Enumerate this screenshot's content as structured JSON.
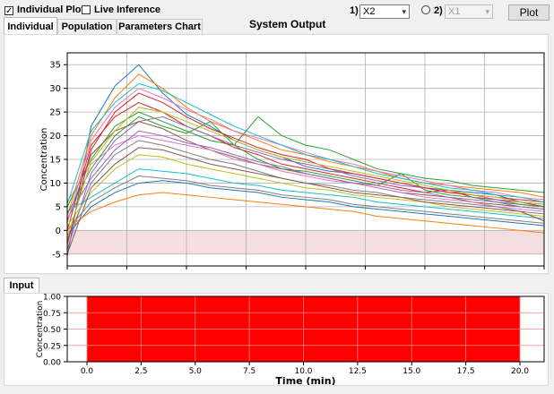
{
  "toolbar": {
    "individual_plot_label": "Individual Plot",
    "individual_plot_checked": true,
    "live_inference_label": "Live Inference",
    "live_inference_checked": false,
    "selector1_label": "1)",
    "selector1_value": "X2",
    "selector2_label": "2)",
    "selector2_value": "X1",
    "plot_button_label": "Plot"
  },
  "tabs": [
    {
      "label": "Individual",
      "active": true
    },
    {
      "label": "Population",
      "active": false
    },
    {
      "label": "Parameters Chart",
      "active": false
    }
  ],
  "output_title": "System Output",
  "input_tab_label": "Input",
  "colors": {
    "band_fill": "#f4dede",
    "input_fill": "#ff0000",
    "palette": [
      "#1f77b4",
      "#ff7f0e",
      "#2ca02c",
      "#d62728",
      "#9467bd",
      "#8c564b",
      "#e377c2",
      "#7f7f7f",
      "#bcbd22",
      "#17becf"
    ]
  },
  "chart_data": [
    {
      "type": "line",
      "title": "",
      "xlabel": "",
      "ylabel": "Concentration",
      "x_range": [
        0,
        20
      ],
      "ylim": [
        -7.5,
        37.5
      ],
      "y_ticks": [
        -5,
        0,
        5,
        10,
        15,
        20,
        25,
        30,
        35
      ],
      "x_ticks": [
        0,
        2.5,
        5,
        7.5,
        10,
        12.5,
        15,
        17.5,
        20
      ],
      "grid": true,
      "shaded_band": [
        -5,
        0
      ],
      "x": [
        0,
        1,
        2,
        3,
        4,
        5,
        6,
        7,
        8,
        9,
        10,
        11,
        12,
        13,
        14,
        15,
        16,
        17,
        18,
        19,
        20
      ],
      "series": [
        {
          "values": [
            -5.5,
            22.0,
            30.5,
            35.0,
            29.0,
            24.5,
            22.0,
            19.0,
            17.0,
            15.5,
            13.5,
            12.5,
            12.0,
            11.0,
            10.0,
            9.0,
            8.5,
            8.0,
            7.5,
            6.0,
            5.5
          ]
        },
        {
          "values": [
            3.0,
            20.0,
            28.0,
            33.0,
            30.0,
            26.0,
            23.0,
            21.0,
            19.0,
            17.0,
            16.0,
            14.5,
            13.5,
            12.5,
            11.0,
            10.0,
            9.5,
            9.0,
            8.5,
            8.0,
            7.0
          ]
        },
        {
          "values": [
            5.0,
            15.0,
            22.0,
            25.0,
            23.0,
            21.0,
            19.0,
            18.0,
            24.0,
            20.0,
            18.0,
            17.0,
            15.0,
            13.0,
            12.0,
            11.0,
            10.5,
            9.5,
            9.0,
            8.5,
            8.0
          ]
        },
        {
          "values": [
            0.0,
            18.0,
            24.0,
            27.0,
            25.0,
            22.0,
            20.0,
            17.5,
            16.0,
            14.0,
            13.0,
            12.0,
            11.0,
            10.0,
            9.0,
            8.0,
            8.5,
            7.0,
            6.5,
            6.0,
            5.0
          ]
        },
        {
          "values": [
            -4.0,
            12.0,
            19.0,
            23.0,
            24.0,
            22.0,
            20.0,
            18.0,
            16.5,
            15.0,
            14.0,
            13.0,
            11.5,
            10.5,
            9.5,
            9.0,
            8.0,
            7.5,
            6.5,
            5.5,
            5.0
          ]
        },
        {
          "values": [
            2.0,
            16.0,
            21.0,
            23.0,
            21.5,
            19.0,
            17.0,
            15.5,
            14.0,
            13.0,
            12.0,
            11.0,
            10.0,
            9.0,
            8.0,
            7.5,
            7.0,
            6.0,
            5.5,
            5.0,
            4.5
          ]
        },
        {
          "values": [
            6.0,
            14.0,
            18.0,
            20.0,
            19.0,
            18.0,
            17.0,
            15.0,
            14.0,
            12.5,
            11.5,
            10.5,
            10.0,
            9.0,
            8.0,
            7.0,
            6.5,
            6.0,
            5.0,
            4.5,
            4.0
          ]
        },
        {
          "values": [
            -2.0,
            10.0,
            16.0,
            19.0,
            18.0,
            16.5,
            15.0,
            14.0,
            12.5,
            11.0,
            10.0,
            9.5,
            8.5,
            8.0,
            7.0,
            6.5,
            6.0,
            5.5,
            5.0,
            4.0,
            3.5
          ]
        },
        {
          "values": [
            1.0,
            8.0,
            13.0,
            16.0,
            15.5,
            14.0,
            13.0,
            12.0,
            11.0,
            10.0,
            9.0,
            8.5,
            7.5,
            7.0,
            6.5,
            6.0,
            5.0,
            4.5,
            4.0,
            3.5,
            3.0
          ]
        },
        {
          "values": [
            4.0,
            7.0,
            10.0,
            13.0,
            12.5,
            12.0,
            11.0,
            10.0,
            9.5,
            8.5,
            8.0,
            7.5,
            7.0,
            6.0,
            5.5,
            5.0,
            4.5,
            4.0,
            3.5,
            3.0,
            2.5
          ]
        },
        {
          "values": [
            -1.0,
            5.0,
            8.0,
            10.0,
            10.5,
            10.0,
            9.0,
            8.5,
            8.0,
            7.0,
            6.5,
            6.0,
            5.0,
            4.5,
            4.0,
            3.5,
            3.0,
            2.5,
            2.0,
            1.5,
            1.0
          ]
        },
        {
          "values": [
            0.5,
            4.0,
            6.0,
            7.5,
            8.0,
            7.5,
            7.0,
            6.5,
            6.0,
            5.5,
            5.0,
            4.5,
            4.0,
            3.0,
            2.5,
            2.0,
            1.5,
            1.0,
            0.5,
            0.0,
            -0.5
          ]
        },
        {
          "values": [
            3.5,
            13.0,
            20.0,
            24.0,
            22.0,
            20.5,
            23.0,
            18.0,
            15.0,
            13.0,
            12.5,
            11.5,
            10.5,
            9.5,
            12.0,
            8.5,
            7.5,
            7.0,
            6.0,
            5.5,
            5.0
          ]
        },
        {
          "values": [
            -3.0,
            17.0,
            25.0,
            29.0,
            27.0,
            24.0,
            21.5,
            19.5,
            17.5,
            16.0,
            15.0,
            13.0,
            12.0,
            11.0,
            10.0,
            9.0,
            8.0,
            7.5,
            7.0,
            6.5,
            6.0
          ]
        },
        {
          "values": [
            2.5,
            11.0,
            17.0,
            21.0,
            20.0,
            18.5,
            17.5,
            16.0,
            14.5,
            13.5,
            12.0,
            11.0,
            10.0,
            9.5,
            8.5,
            8.0,
            7.0,
            6.5,
            6.0,
            5.0,
            4.5
          ]
        },
        {
          "values": [
            -5.0,
            9.0,
            14.0,
            17.5,
            17.0,
            15.5,
            14.0,
            13.0,
            12.0,
            11.0,
            10.0,
            9.0,
            8.0,
            7.5,
            7.0,
            6.0,
            5.5,
            5.0,
            4.5,
            4.0,
            2.0
          ]
        },
        {
          "values": [
            1.5,
            19.0,
            26.0,
            30.0,
            28.0,
            25.5,
            23.5,
            21.0,
            19.5,
            18.0,
            16.5,
            15.0,
            14.0,
            12.5,
            11.5,
            10.5,
            9.5,
            8.5,
            8.0,
            7.0,
            6.5
          ]
        },
        {
          "values": [
            0.0,
            6.0,
            9.0,
            11.5,
            11.0,
            10.5,
            9.5,
            9.0,
            8.5,
            7.5,
            7.0,
            6.5,
            5.5,
            5.0,
            4.5,
            4.0,
            3.5,
            3.0,
            2.5,
            2.0,
            1.5
          ]
        },
        {
          "values": [
            -1.5,
            14.5,
            21.0,
            26.0,
            25.0,
            23.0,
            21.0,
            19.0,
            17.0,
            15.5,
            14.5,
            13.5,
            12.5,
            11.5,
            10.5,
            9.5,
            8.5,
            7.5,
            7.0,
            6.0,
            5.5
          ]
        },
        {
          "values": [
            5.5,
            21.0,
            27.0,
            31.0,
            29.5,
            27.0,
            24.5,
            22.0,
            20.0,
            18.0,
            16.0,
            15.0,
            13.5,
            12.0,
            11.0,
            10.0,
            9.0,
            8.5,
            7.5,
            7.0,
            6.0
          ]
        }
      ]
    },
    {
      "type": "area",
      "title": "",
      "xlabel": "Time (min)",
      "ylabel": "Concentration",
      "x_range": [
        0,
        20
      ],
      "ylim": [
        0,
        1
      ],
      "y_ticks": [
        0.0,
        0.25,
        0.5,
        0.75,
        1.0
      ],
      "y_tick_labels": [
        "0.00",
        "0.25",
        "0.50",
        "0.75",
        "1.00"
      ],
      "x_ticks": [
        0,
        2.5,
        5,
        7.5,
        10,
        12.5,
        15,
        17.5,
        20
      ],
      "x_tick_labels": [
        "0.0",
        "2.5",
        "5.0",
        "7.5",
        "10.0",
        "12.5",
        "15.0",
        "17.5",
        "20.0"
      ],
      "grid": true,
      "x": [
        0,
        20
      ],
      "values": [
        1.0,
        1.0
      ]
    }
  ]
}
